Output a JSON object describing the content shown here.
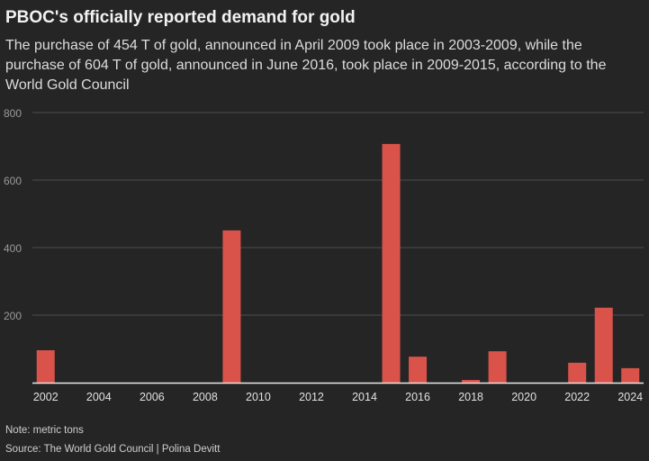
{
  "chart_data": {
    "type": "bar",
    "title": "PBOC's officially reported demand for gold",
    "subtitle": "The purchase of 454 T of gold, announced in April 2009 took place in 2003-2009, while the purchase of 604 T of gold, announced in June 2016, took place in 2009-2015, according to the World Gold Council",
    "categories": [
      2002,
      2003,
      2004,
      2005,
      2006,
      2007,
      2008,
      2009,
      2010,
      2011,
      2012,
      2013,
      2014,
      2015,
      2016,
      2017,
      2018,
      2019,
      2020,
      2021,
      2022,
      2023,
      2024
    ],
    "values": [
      96,
      0,
      0,
      0,
      0,
      0,
      0,
      451,
      0,
      0,
      0,
      0,
      0,
      707,
      77,
      0,
      8,
      93,
      0,
      0,
      59,
      222,
      43
    ],
    "x_tick_labels": [
      "2002",
      "2004",
      "2006",
      "2008",
      "2010",
      "2012",
      "2014",
      "2016",
      "2018",
      "2020",
      "2022",
      "2024"
    ],
    "y_ticks": [
      200,
      400,
      600,
      800
    ],
    "ylim": [
      0,
      800
    ],
    "grid": "horizontal",
    "bar_color": "#d9534a",
    "background": "#252525",
    "note": "Note: metric tons",
    "source": "Source: The World Gold Council | Polina Devitt"
  }
}
